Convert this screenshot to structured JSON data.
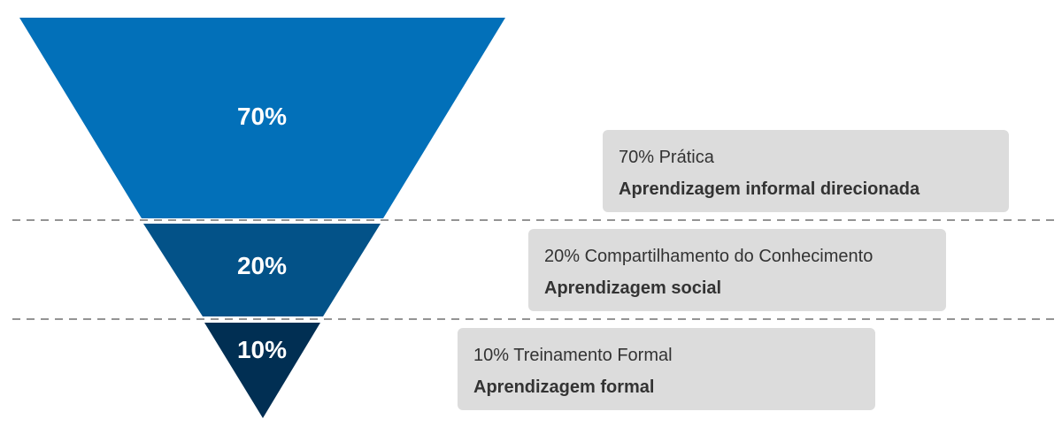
{
  "diagram": {
    "segments": [
      {
        "label": "70%",
        "value": 70,
        "color": "#0270b9",
        "info": {
          "line1": "70% Prática",
          "line2": "Aprendizagem informal direcionada"
        }
      },
      {
        "label": "20%",
        "value": 20,
        "color": "#035288",
        "info": {
          "line1": "20% Compartilhamento do Conhecimento",
          "line2": "Aprendizagem social"
        }
      },
      {
        "label": "10%",
        "value": 10,
        "color": "#012f53",
        "info": {
          "line1": "10% Treinamento Formal",
          "line2": "Aprendizagem formal"
        }
      }
    ],
    "info_box_color": "#dcdcdc",
    "divider_color": "#555555"
  }
}
